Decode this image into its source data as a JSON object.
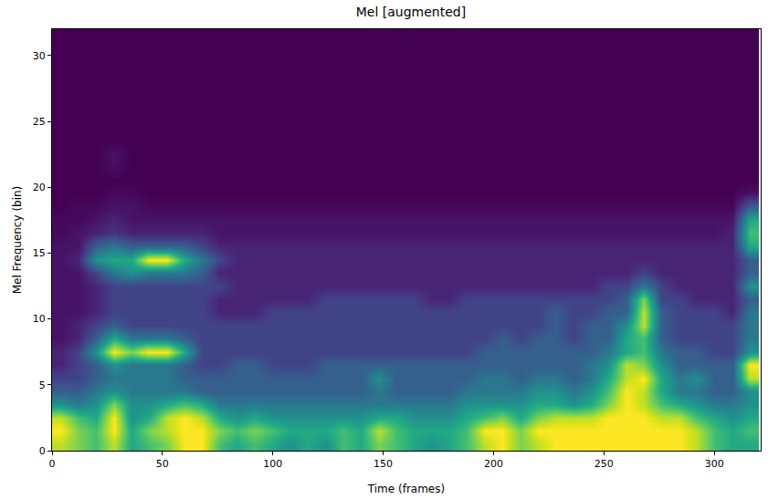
{
  "chart_data": {
    "type": "heatmap",
    "title": "Mel [augmented]",
    "x_label": "Time (frames)",
    "y_label": "Mel Frequency (bin)",
    "xlim": [
      0,
      321
    ],
    "ylim": [
      0,
      32
    ],
    "xticks": [
      0,
      50,
      100,
      150,
      200,
      250,
      300
    ],
    "yticks": [
      0,
      5,
      10,
      15,
      20,
      25,
      30
    ],
    "grid": false,
    "zlim": [
      0,
      1
    ],
    "x": [
      4,
      12,
      20,
      28,
      36,
      44,
      52,
      60,
      68,
      76,
      84,
      92,
      100,
      108,
      116,
      124,
      132,
      140,
      148,
      156,
      164,
      172,
      180,
      188,
      196,
      204,
      212,
      220,
      228,
      236,
      244,
      252,
      260,
      268,
      276,
      284,
      292,
      300,
      308,
      316
    ],
    "y": [
      0.5,
      1.5,
      2.5,
      3.5,
      4.5,
      5.5,
      6.5,
      7.5,
      8.5,
      9.5,
      10.5,
      11.5,
      12.5,
      13.5,
      14.5,
      15.5,
      16.5,
      17.5,
      18.5,
      19.5,
      20.5,
      21.5,
      22.5,
      23.5,
      24.5,
      25.5,
      26.5,
      27.5,
      28.5,
      29.5,
      30.5,
      31.5
    ],
    "cells": [
      [
        0.9,
        0.8,
        0.7,
        0.9,
        0.6,
        0.7,
        0.8,
        1,
        1,
        0.7,
        0.6,
        0.7,
        0.6,
        0.5,
        0.6,
        0.5,
        0.7,
        0.6,
        0.8,
        0.7,
        0.6,
        0.5,
        0.6,
        0.7,
        0.9,
        1,
        0.8,
        0.9,
        1,
        1,
        1,
        1,
        1,
        1,
        1,
        1,
        0.9,
        0.7,
        0.6,
        0.6
      ],
      [
        1,
        0.8,
        0.7,
        1,
        0.6,
        0.8,
        0.9,
        1,
        1,
        0.8,
        0.7,
        0.8,
        0.7,
        0.6,
        0.6,
        0.6,
        0.7,
        0.6,
        0.9,
        0.7,
        0.6,
        0.6,
        0.6,
        0.7,
        1,
        1,
        0.8,
        1,
        1,
        1,
        1,
        1,
        1,
        1,
        1,
        1,
        0.9,
        0.7,
        0.6,
        0.7
      ],
      [
        0.9,
        0.7,
        0.6,
        1,
        0.5,
        0.6,
        0.9,
        1,
        0.9,
        0.6,
        0.5,
        0.6,
        0.5,
        0.5,
        0.5,
        0.5,
        0.5,
        0.5,
        0.6,
        0.6,
        0.5,
        0.5,
        0.5,
        0.6,
        0.7,
        0.8,
        0.6,
        0.8,
        0.9,
        0.9,
        0.9,
        1,
        1,
        1,
        0.9,
        0.9,
        0.7,
        0.6,
        0.5,
        0.6
      ],
      [
        0.5,
        0.4,
        0.5,
        0.8,
        0.5,
        0.5,
        0.6,
        0.7,
        0.6,
        0.4,
        0.4,
        0.4,
        0.4,
        0.4,
        0.4,
        0.4,
        0.4,
        0.4,
        0.4,
        0.4,
        0.4,
        0.4,
        0.4,
        0.5,
        0.5,
        0.5,
        0.5,
        0.6,
        0.6,
        0.5,
        0.6,
        0.8,
        1,
        0.9,
        0.7,
        0.6,
        0.5,
        0.4,
        0.4,
        0.5
      ],
      [
        0.3,
        0.3,
        0.4,
        0.5,
        0.4,
        0.4,
        0.4,
        0.4,
        0.3,
        0.3,
        0.3,
        0.3,
        0.3,
        0.3,
        0.3,
        0.3,
        0.3,
        0.3,
        0.4,
        0.3,
        0.3,
        0.3,
        0.3,
        0.4,
        0.4,
        0.4,
        0.4,
        0.5,
        0.5,
        0.4,
        0.5,
        0.7,
        1,
        0.9,
        0.6,
        0.4,
        0.4,
        0.3,
        0.3,
        0.5
      ],
      [
        0.2,
        0.2,
        0.3,
        0.4,
        0.4,
        0.4,
        0.4,
        0.3,
        0.3,
        0.3,
        0.3,
        0.3,
        0.3,
        0.3,
        0.3,
        0.3,
        0.3,
        0.3,
        0.5,
        0.3,
        0.3,
        0.3,
        0.3,
        0.3,
        0.4,
        0.4,
        0.3,
        0.4,
        0.4,
        0.3,
        0.4,
        0.6,
        0.9,
        1,
        0.6,
        0.4,
        0.5,
        0.3,
        0.3,
        0.9
      ],
      [
        0.1,
        0.2,
        0.3,
        0.5,
        0.4,
        0.4,
        0.4,
        0.3,
        0.2,
        0.2,
        0.3,
        0.3,
        0.2,
        0.2,
        0.2,
        0.3,
        0.3,
        0.3,
        0.3,
        0.3,
        0.3,
        0.3,
        0.3,
        0.3,
        0.3,
        0.3,
        0.3,
        0.3,
        0.3,
        0.3,
        0.4,
        0.5,
        0.9,
        0.8,
        0.5,
        0.3,
        0.3,
        0.3,
        0.3,
        1
      ],
      [
        0.1,
        0.2,
        0.5,
        1,
        0.8,
        1,
        1,
        0.6,
        0.2,
        0.2,
        0.2,
        0.2,
        0.2,
        0.2,
        0.2,
        0.2,
        0.2,
        0.2,
        0.2,
        0.2,
        0.2,
        0.2,
        0.2,
        0.2,
        0.3,
        0.3,
        0.3,
        0.3,
        0.3,
        0.3,
        0.3,
        0.4,
        0.6,
        0.7,
        0.4,
        0.3,
        0.3,
        0.2,
        0.2,
        0.5
      ],
      [
        0.05,
        0.1,
        0.3,
        0.6,
        0.4,
        0.4,
        0.4,
        0.3,
        0.2,
        0.2,
        0.2,
        0.2,
        0.2,
        0.2,
        0.2,
        0.2,
        0.2,
        0.2,
        0.2,
        0.2,
        0.2,
        0.2,
        0.2,
        0.2,
        0.2,
        0.3,
        0.2,
        0.3,
        0.3,
        0.2,
        0.3,
        0.3,
        0.6,
        0.7,
        0.3,
        0.2,
        0.2,
        0.2,
        0.2,
        0.4
      ],
      [
        0.05,
        0.1,
        0.2,
        0.3,
        0.2,
        0.2,
        0.2,
        0.2,
        0.2,
        0.2,
        0.2,
        0.2,
        0.2,
        0.2,
        0.2,
        0.2,
        0.2,
        0.2,
        0.2,
        0.2,
        0.2,
        0.2,
        0.2,
        0.2,
        0.2,
        0.2,
        0.2,
        0.2,
        0.3,
        0.2,
        0.3,
        0.3,
        0.5,
        0.9,
        0.3,
        0.2,
        0.2,
        0.2,
        0.2,
        0.4
      ],
      [
        0.05,
        0.05,
        0.1,
        0.2,
        0.2,
        0.2,
        0.2,
        0.2,
        0.2,
        0.1,
        0.1,
        0.1,
        0.2,
        0.2,
        0.2,
        0.2,
        0.2,
        0.2,
        0.2,
        0.2,
        0.2,
        0.2,
        0.2,
        0.2,
        0.2,
        0.2,
        0.2,
        0.2,
        0.3,
        0.2,
        0.2,
        0.3,
        0.3,
        0.9,
        0.3,
        0.2,
        0.2,
        0.2,
        0.1,
        0.4
      ],
      [
        0.05,
        0.05,
        0.1,
        0.2,
        0.2,
        0.2,
        0.2,
        0.2,
        0.2,
        0.1,
        0.1,
        0.1,
        0.1,
        0.1,
        0.1,
        0.2,
        0.2,
        0.2,
        0.2,
        0.2,
        0.2,
        0.1,
        0.1,
        0.2,
        0.2,
        0.2,
        0.2,
        0.2,
        0.2,
        0.2,
        0.2,
        0.2,
        0.3,
        0.8,
        0.2,
        0.2,
        0.1,
        0.1,
        0.1,
        0.3
      ],
      [
        0.05,
        0.05,
        0.1,
        0.2,
        0.2,
        0.2,
        0.2,
        0.2,
        0.2,
        0.2,
        0.1,
        0.1,
        0.1,
        0.1,
        0.1,
        0.1,
        0.1,
        0.1,
        0.1,
        0.1,
        0.1,
        0.1,
        0.1,
        0.1,
        0.1,
        0.1,
        0.1,
        0.1,
        0.1,
        0.1,
        0.1,
        0.2,
        0.2,
        0.4,
        0.2,
        0.1,
        0.1,
        0.1,
        0.1,
        0.5
      ],
      [
        0.05,
        0.05,
        0.2,
        0.4,
        0.5,
        0.4,
        0.4,
        0.4,
        0.3,
        0.1,
        0.1,
        0.1,
        0.1,
        0.1,
        0.1,
        0.1,
        0.1,
        0.1,
        0.1,
        0.1,
        0.1,
        0.1,
        0.1,
        0.1,
        0.1,
        0.1,
        0.1,
        0.1,
        0.1,
        0.1,
        0.1,
        0.1,
        0.1,
        0.2,
        0.1,
        0.1,
        0.1,
        0.1,
        0.1,
        0.3
      ],
      [
        0.05,
        0.1,
        0.5,
        0.6,
        0.6,
        1,
        1,
        0.6,
        0.4,
        0.2,
        0.1,
        0.1,
        0.1,
        0.1,
        0.1,
        0.1,
        0.1,
        0.1,
        0.1,
        0.1,
        0.1,
        0.1,
        0.1,
        0.1,
        0.1,
        0.1,
        0.1,
        0.1,
        0.1,
        0.1,
        0.1,
        0.1,
        0.1,
        0.1,
        0.1,
        0.1,
        0.1,
        0.1,
        0.1,
        0.3
      ],
      [
        0.05,
        0.05,
        0.3,
        0.4,
        0.3,
        0.3,
        0.3,
        0.3,
        0.2,
        0.1,
        0.1,
        0.1,
        0.1,
        0.1,
        0.1,
        0.1,
        0.1,
        0.1,
        0.1,
        0.1,
        0.1,
        0.1,
        0.1,
        0.1,
        0.1,
        0.1,
        0.1,
        0.1,
        0.1,
        0.1,
        0.1,
        0.1,
        0.1,
        0.1,
        0.1,
        0.1,
        0.1,
        0.1,
        0.1,
        0.6
      ],
      [
        0.02,
        0.05,
        0.1,
        0.15,
        0.1,
        0.1,
        0.1,
        0.1,
        0.1,
        0.05,
        0.05,
        0.05,
        0.05,
        0.05,
        0.05,
        0.05,
        0.05,
        0.05,
        0.05,
        0.05,
        0.05,
        0.05,
        0.05,
        0.05,
        0.05,
        0.05,
        0.05,
        0.05,
        0.05,
        0.05,
        0.05,
        0.05,
        0.05,
        0.05,
        0.05,
        0.05,
        0.05,
        0.05,
        0.1,
        0.7
      ],
      [
        0.02,
        0.02,
        0.05,
        0.1,
        0.05,
        0.05,
        0.05,
        0.05,
        0.05,
        0.05,
        0.05,
        0.05,
        0.05,
        0.05,
        0.05,
        0.05,
        0.05,
        0.05,
        0.05,
        0.05,
        0.05,
        0.05,
        0.05,
        0.05,
        0.05,
        0.05,
        0.05,
        0.05,
        0.05,
        0.05,
        0.05,
        0.05,
        0.05,
        0.05,
        0.05,
        0.05,
        0.05,
        0.05,
        0.05,
        0.6
      ],
      [
        0,
        0.02,
        0.02,
        0.05,
        0.05,
        0.02,
        0.02,
        0.02,
        0.02,
        0.02,
        0.02,
        0.02,
        0.02,
        0.02,
        0.02,
        0.02,
        0.02,
        0.02,
        0.02,
        0.02,
        0.02,
        0.02,
        0.02,
        0.02,
        0.02,
        0.02,
        0.02,
        0.02,
        0.02,
        0.02,
        0.02,
        0.02,
        0.02,
        0.02,
        0.02,
        0.02,
        0.02,
        0.02,
        0.02,
        0.3
      ],
      [
        0,
        0,
        0,
        0.02,
        0.02,
        0,
        0,
        0,
        0,
        0,
        0,
        0,
        0,
        0,
        0,
        0,
        0,
        0,
        0,
        0,
        0,
        0,
        0,
        0,
        0,
        0,
        0,
        0,
        0,
        0,
        0,
        0,
        0,
        0,
        0,
        0,
        0,
        0,
        0,
        0.05
      ],
      [
        0,
        0,
        0,
        0,
        0,
        0,
        0,
        0,
        0,
        0,
        0,
        0,
        0,
        0,
        0,
        0,
        0,
        0,
        0,
        0,
        0,
        0,
        0,
        0,
        0,
        0,
        0,
        0,
        0,
        0,
        0,
        0,
        0,
        0,
        0,
        0,
        0,
        0,
        0,
        0
      ],
      [
        0,
        0,
        0,
        0.03,
        0,
        0,
        0,
        0,
        0,
        0,
        0,
        0,
        0,
        0,
        0,
        0,
        0,
        0,
        0,
        0,
        0,
        0,
        0,
        0,
        0,
        0,
        0,
        0,
        0,
        0,
        0,
        0,
        0,
        0,
        0,
        0,
        0,
        0,
        0,
        0
      ],
      [
        0,
        0,
        0,
        0.05,
        0,
        0,
        0,
        0,
        0,
        0,
        0,
        0,
        0,
        0,
        0,
        0,
        0,
        0,
        0,
        0,
        0,
        0,
        0,
        0,
        0,
        0,
        0,
        0,
        0,
        0,
        0,
        0,
        0,
        0,
        0,
        0,
        0,
        0,
        0,
        0
      ],
      [
        0,
        0,
        0,
        0,
        0,
        0,
        0,
        0,
        0,
        0,
        0,
        0,
        0,
        0,
        0,
        0,
        0,
        0,
        0,
        0,
        0,
        0,
        0,
        0,
        0,
        0,
        0,
        0,
        0,
        0,
        0,
        0,
        0,
        0,
        0,
        0,
        0,
        0,
        0,
        0
      ],
      [
        0,
        0,
        0,
        0,
        0,
        0,
        0,
        0,
        0,
        0,
        0,
        0,
        0,
        0,
        0,
        0,
        0,
        0,
        0,
        0,
        0,
        0,
        0,
        0,
        0,
        0,
        0,
        0,
        0,
        0,
        0,
        0,
        0,
        0,
        0,
        0,
        0,
        0,
        0,
        0
      ],
      [
        0,
        0,
        0,
        0,
        0,
        0,
        0,
        0,
        0,
        0,
        0,
        0,
        0,
        0,
        0,
        0,
        0,
        0,
        0,
        0,
        0,
        0,
        0,
        0,
        0,
        0,
        0,
        0,
        0,
        0,
        0,
        0,
        0,
        0,
        0,
        0,
        0,
        0,
        0,
        0
      ],
      [
        0,
        0,
        0,
        0,
        0,
        0,
        0,
        0,
        0,
        0,
        0,
        0,
        0,
        0,
        0,
        0,
        0,
        0,
        0,
        0,
        0,
        0,
        0,
        0,
        0,
        0,
        0,
        0,
        0,
        0,
        0,
        0,
        0,
        0,
        0,
        0,
        0,
        0,
        0,
        0
      ],
      [
        0,
        0,
        0,
        0,
        0,
        0,
        0,
        0,
        0,
        0,
        0,
        0,
        0,
        0,
        0,
        0,
        0,
        0,
        0,
        0,
        0,
        0,
        0,
        0,
        0,
        0,
        0,
        0,
        0,
        0,
        0,
        0,
        0,
        0,
        0,
        0,
        0,
        0,
        0,
        0
      ],
      [
        0,
        0,
        0,
        0,
        0,
        0,
        0,
        0,
        0,
        0,
        0,
        0,
        0,
        0,
        0,
        0,
        0,
        0,
        0,
        0,
        0,
        0,
        0,
        0,
        0,
        0,
        0,
        0,
        0,
        0,
        0,
        0,
        0,
        0,
        0,
        0,
        0,
        0,
        0,
        0
      ],
      [
        0,
        0,
        0,
        0,
        0,
        0,
        0,
        0,
        0,
        0,
        0,
        0,
        0,
        0,
        0,
        0,
        0,
        0,
        0,
        0,
        0,
        0,
        0,
        0,
        0,
        0,
        0,
        0,
        0,
        0,
        0,
        0,
        0,
        0,
        0,
        0,
        0,
        0,
        0,
        0
      ],
      [
        0,
        0,
        0,
        0,
        0,
        0,
        0,
        0,
        0,
        0,
        0,
        0,
        0,
        0,
        0,
        0,
        0,
        0,
        0,
        0,
        0,
        0,
        0,
        0,
        0,
        0,
        0,
        0,
        0,
        0,
        0,
        0,
        0,
        0,
        0,
        0,
        0,
        0,
        0,
        0
      ],
      [
        0,
        0,
        0,
        0,
        0,
        0,
        0,
        0,
        0,
        0,
        0,
        0,
        0,
        0,
        0,
        0,
        0,
        0,
        0,
        0,
        0,
        0,
        0,
        0,
        0,
        0,
        0,
        0,
        0,
        0,
        0,
        0,
        0,
        0,
        0,
        0,
        0,
        0,
        0,
        0
      ]
    ]
  }
}
